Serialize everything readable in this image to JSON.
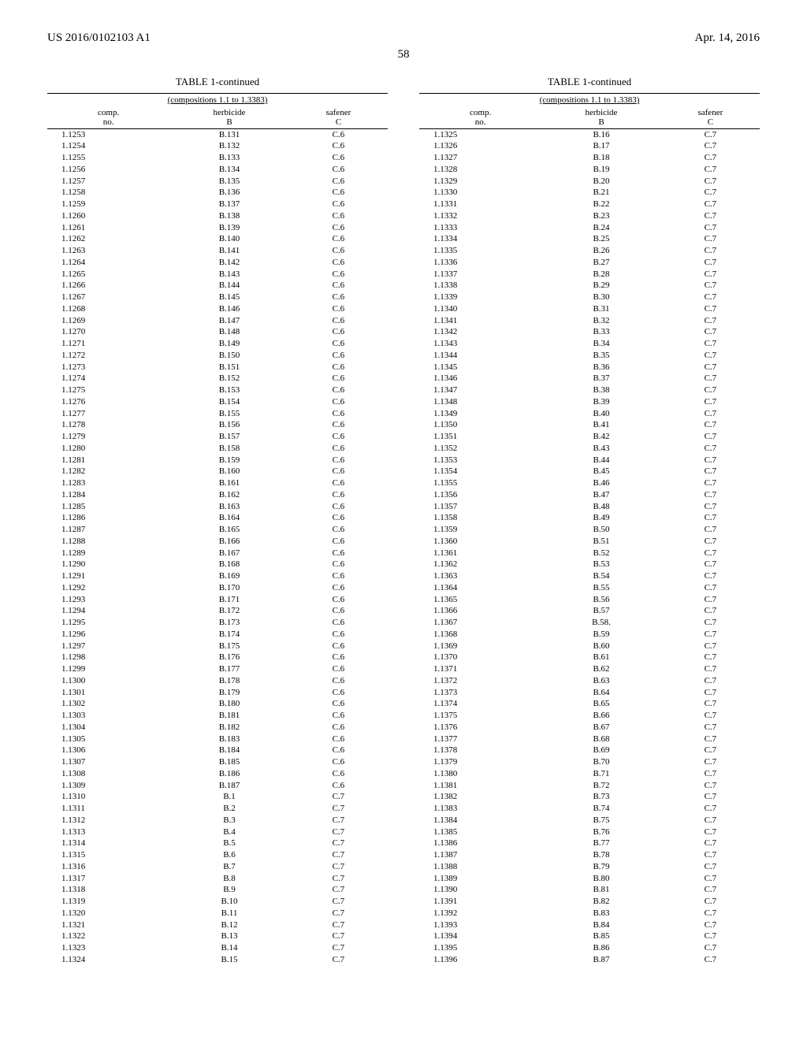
{
  "header": {
    "left": "US 2016/0102103 A1",
    "right": "Apr. 14, 2016"
  },
  "page_number": "58",
  "table_caption": "TABLE 1-continued",
  "table_subcaption": "(compositions 1.1 to 1.3383)",
  "columns_header": {
    "c1_line1": "comp.",
    "c1_line2": "no.",
    "c2_line1": "herbicide",
    "c2_line2": "B",
    "c3_line1": "safener",
    "c3_line2": "C"
  },
  "left_rows": [
    [
      "1.1253",
      "B.131",
      "C.6"
    ],
    [
      "1.1254",
      "B.132",
      "C.6"
    ],
    [
      "1.1255",
      "B.133",
      "C.6"
    ],
    [
      "1.1256",
      "B.134",
      "C.6"
    ],
    [
      "1.1257",
      "B.135",
      "C.6"
    ],
    [
      "1.1258",
      "B.136",
      "C.6"
    ],
    [
      "1.1259",
      "B.137",
      "C.6"
    ],
    [
      "1.1260",
      "B.138",
      "C.6"
    ],
    [
      "1.1261",
      "B.139",
      "C.6"
    ],
    [
      "1.1262",
      "B.140",
      "C.6"
    ],
    [
      "1.1263",
      "B.141",
      "C.6"
    ],
    [
      "1.1264",
      "B.142",
      "C.6"
    ],
    [
      "1.1265",
      "B.143",
      "C.6"
    ],
    [
      "1.1266",
      "B.144",
      "C.6"
    ],
    [
      "1.1267",
      "B.145",
      "C.6"
    ],
    [
      "1.1268",
      "B.146",
      "C.6"
    ],
    [
      "1.1269",
      "B.147",
      "C.6"
    ],
    [
      "1.1270",
      "B.148",
      "C.6"
    ],
    [
      "1.1271",
      "B.149",
      "C.6"
    ],
    [
      "1.1272",
      "B.150",
      "C.6"
    ],
    [
      "1.1273",
      "B.151",
      "C.6"
    ],
    [
      "1.1274",
      "B.152",
      "C.6"
    ],
    [
      "1.1275",
      "B.153",
      "C.6"
    ],
    [
      "1.1276",
      "B.154",
      "C.6"
    ],
    [
      "1.1277",
      "B.155",
      "C.6"
    ],
    [
      "1.1278",
      "B.156",
      "C.6"
    ],
    [
      "1.1279",
      "B.157",
      "C.6"
    ],
    [
      "1.1280",
      "B.158",
      "C.6"
    ],
    [
      "1.1281",
      "B.159",
      "C.6"
    ],
    [
      "1.1282",
      "B.160",
      "C.6"
    ],
    [
      "1.1283",
      "B.161",
      "C.6"
    ],
    [
      "1.1284",
      "B.162",
      "C.6"
    ],
    [
      "1.1285",
      "B.163",
      "C.6"
    ],
    [
      "1.1286",
      "B.164",
      "C.6"
    ],
    [
      "1.1287",
      "B.165",
      "C.6"
    ],
    [
      "1.1288",
      "B.166",
      "C.6"
    ],
    [
      "1.1289",
      "B.167",
      "C.6"
    ],
    [
      "1.1290",
      "B.168",
      "C.6"
    ],
    [
      "1.1291",
      "B.169",
      "C.6"
    ],
    [
      "1.1292",
      "B.170",
      "C.6"
    ],
    [
      "1.1293",
      "B.171",
      "C.6"
    ],
    [
      "1.1294",
      "B.172",
      "C.6"
    ],
    [
      "1.1295",
      "B.173",
      "C.6"
    ],
    [
      "1.1296",
      "B.174",
      "C.6"
    ],
    [
      "1.1297",
      "B.175",
      "C.6"
    ],
    [
      "1.1298",
      "B.176",
      "C.6"
    ],
    [
      "1.1299",
      "B.177",
      "C.6"
    ],
    [
      "1.1300",
      "B.178",
      "C.6"
    ],
    [
      "1.1301",
      "B.179",
      "C.6"
    ],
    [
      "1.1302",
      "B.180",
      "C.6"
    ],
    [
      "1.1303",
      "B.181",
      "C.6"
    ],
    [
      "1.1304",
      "B.182",
      "C.6"
    ],
    [
      "1.1305",
      "B.183",
      "C.6"
    ],
    [
      "1.1306",
      "B.184",
      "C.6"
    ],
    [
      "1.1307",
      "B.185",
      "C.6"
    ],
    [
      "1.1308",
      "B.186",
      "C.6"
    ],
    [
      "1.1309",
      "B.187",
      "C.6"
    ],
    [
      "1.1310",
      "B.1",
      "C.7"
    ],
    [
      "1.1311",
      "B.2",
      "C.7"
    ],
    [
      "1.1312",
      "B.3",
      "C.7"
    ],
    [
      "1.1313",
      "B.4",
      "C.7"
    ],
    [
      "1.1314",
      "B.5",
      "C.7"
    ],
    [
      "1.1315",
      "B.6",
      "C.7"
    ],
    [
      "1.1316",
      "B.7",
      "C.7"
    ],
    [
      "1.1317",
      "B.8",
      "C.7"
    ],
    [
      "1.1318",
      "B.9",
      "C.7"
    ],
    [
      "1.1319",
      "B.10",
      "C.7"
    ],
    [
      "1.1320",
      "B.11",
      "C.7"
    ],
    [
      "1.1321",
      "B.12",
      "C.7"
    ],
    [
      "1.1322",
      "B.13",
      "C.7"
    ],
    [
      "1.1323",
      "B.14",
      "C.7"
    ],
    [
      "1.1324",
      "B.15",
      "C.7"
    ]
  ],
  "right_rows": [
    [
      "1.1325",
      "B.16",
      "C.7"
    ],
    [
      "1.1326",
      "B.17",
      "C.7"
    ],
    [
      "1.1327",
      "B.18",
      "C.7"
    ],
    [
      "1.1328",
      "B.19",
      "C.7"
    ],
    [
      "1.1329",
      "B.20",
      "C.7"
    ],
    [
      "1.1330",
      "B.21",
      "C.7"
    ],
    [
      "1.1331",
      "B.22",
      "C.7"
    ],
    [
      "1.1332",
      "B.23",
      "C.7"
    ],
    [
      "1.1333",
      "B.24",
      "C.7"
    ],
    [
      "1.1334",
      "B.25",
      "C.7"
    ],
    [
      "1.1335",
      "B.26",
      "C.7"
    ],
    [
      "1.1336",
      "B.27",
      "C.7"
    ],
    [
      "1.1337",
      "B.28",
      "C.7"
    ],
    [
      "1.1338",
      "B.29",
      "C.7"
    ],
    [
      "1.1339",
      "B.30",
      "C.7"
    ],
    [
      "1.1340",
      "B.31",
      "C.7"
    ],
    [
      "1.1341",
      "B.32",
      "C.7"
    ],
    [
      "1.1342",
      "B.33",
      "C.7"
    ],
    [
      "1.1343",
      "B.34",
      "C.7"
    ],
    [
      "1.1344",
      "B.35",
      "C.7"
    ],
    [
      "1.1345",
      "B.36",
      "C.7"
    ],
    [
      "1.1346",
      "B.37",
      "C.7"
    ],
    [
      "1.1347",
      "B.38",
      "C.7"
    ],
    [
      "1.1348",
      "B.39",
      "C.7"
    ],
    [
      "1.1349",
      "B.40",
      "C.7"
    ],
    [
      "1.1350",
      "B.41",
      "C.7"
    ],
    [
      "1.1351",
      "B.42",
      "C.7"
    ],
    [
      "1.1352",
      "B.43",
      "C.7"
    ],
    [
      "1.1353",
      "B.44",
      "C.7"
    ],
    [
      "1.1354",
      "B.45",
      "C.7"
    ],
    [
      "1.1355",
      "B.46",
      "C.7"
    ],
    [
      "1.1356",
      "B.47",
      "C.7"
    ],
    [
      "1.1357",
      "B.48",
      "C.7"
    ],
    [
      "1.1358",
      "B.49",
      "C.7"
    ],
    [
      "1.1359",
      "B.50",
      "C.7"
    ],
    [
      "1.1360",
      "B.51",
      "C.7"
    ],
    [
      "1.1361",
      "B.52",
      "C.7"
    ],
    [
      "1.1362",
      "B.53",
      "C.7"
    ],
    [
      "1.1363",
      "B.54",
      "C.7"
    ],
    [
      "1.1364",
      "B.55",
      "C.7"
    ],
    [
      "1.1365",
      "B.56",
      "C.7"
    ],
    [
      "1.1366",
      "B.57",
      "C.7"
    ],
    [
      "1.1367",
      "B.58.",
      "C.7"
    ],
    [
      "1.1368",
      "B.59",
      "C.7"
    ],
    [
      "1.1369",
      "B.60",
      "C.7"
    ],
    [
      "1.1370",
      "B.61",
      "C.7"
    ],
    [
      "1.1371",
      "B.62",
      "C.7"
    ],
    [
      "1.1372",
      "B.63",
      "C.7"
    ],
    [
      "1.1373",
      "B.64",
      "C.7"
    ],
    [
      "1.1374",
      "B.65",
      "C.7"
    ],
    [
      "1.1375",
      "B.66",
      "C.7"
    ],
    [
      "1.1376",
      "B.67",
      "C.7"
    ],
    [
      "1.1377",
      "B.68",
      "C.7"
    ],
    [
      "1.1378",
      "B.69",
      "C.7"
    ],
    [
      "1.1379",
      "B.70",
      "C.7"
    ],
    [
      "1.1380",
      "B.71",
      "C.7"
    ],
    [
      "1.1381",
      "B.72",
      "C.7"
    ],
    [
      "1.1382",
      "B.73",
      "C.7"
    ],
    [
      "1.1383",
      "B.74",
      "C.7"
    ],
    [
      "1.1384",
      "B.75",
      "C.7"
    ],
    [
      "1.1385",
      "B.76",
      "C.7"
    ],
    [
      "1.1386",
      "B.77",
      "C.7"
    ],
    [
      "1.1387",
      "B.78",
      "C.7"
    ],
    [
      "1.1388",
      "B.79",
      "C.7"
    ],
    [
      "1.1389",
      "B.80",
      "C.7"
    ],
    [
      "1.1390",
      "B.81",
      "C.7"
    ],
    [
      "1.1391",
      "B.82",
      "C.7"
    ],
    [
      "1.1392",
      "B.83",
      "C.7"
    ],
    [
      "1.1393",
      "B.84",
      "C.7"
    ],
    [
      "1.1394",
      "B.85",
      "C.7"
    ],
    [
      "1.1395",
      "B.86",
      "C.7"
    ],
    [
      "1.1396",
      "B.87",
      "C.7"
    ]
  ]
}
